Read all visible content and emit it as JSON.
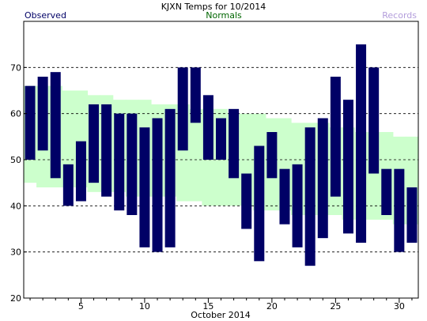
{
  "chart_data": {
    "type": "bar",
    "title": "KJXN Temps for 10/2014",
    "xlabel": "October 2014",
    "ylabel": "",
    "legend": [
      {
        "label": "Observed",
        "color": "#000066",
        "position": "top-left"
      },
      {
        "label": "Normals",
        "color": "#006600",
        "position": "top-center"
      },
      {
        "label": "Records",
        "color": "#b39ddb",
        "position": "top-right"
      }
    ],
    "ylim": [
      20,
      80
    ],
    "xlim": [
      0.5,
      31.5
    ],
    "grid": "horizontal dashed",
    "y_ticks": [
      20,
      30,
      40,
      50,
      60,
      70
    ],
    "x_ticks": [
      5,
      10,
      15,
      20,
      25,
      30
    ],
    "days": [
      1,
      2,
      3,
      4,
      5,
      6,
      7,
      8,
      9,
      10,
      11,
      12,
      13,
      14,
      15,
      16,
      17,
      18,
      19,
      20,
      21,
      22,
      23,
      24,
      25,
      26,
      27,
      28,
      29,
      30,
      31
    ],
    "series": [
      {
        "name": "Observed",
        "color": "#000066",
        "high": [
          66,
          68,
          69,
          49,
          54,
          62,
          62,
          60,
          60,
          57,
          59,
          61,
          70,
          70,
          64,
          59,
          61,
          47,
          53,
          56,
          48,
          49,
          57,
          59,
          68,
          63,
          75,
          70,
          48,
          48,
          44
        ],
        "low": [
          50,
          52,
          46,
          40,
          41,
          45,
          42,
          39,
          38,
          31,
          30,
          31,
          52,
          58,
          50,
          50,
          46,
          35,
          28,
          46,
          36,
          31,
          27,
          33,
          42,
          34,
          32,
          47,
          38,
          30,
          32
        ]
      },
      {
        "name": "Normals",
        "color": "#ccffcc",
        "high": [
          66,
          66,
          66,
          65,
          65,
          64,
          64,
          63,
          63,
          63,
          62,
          62,
          62,
          61,
          61,
          61,
          60,
          60,
          60,
          59,
          59,
          58,
          58,
          58,
          57,
          57,
          56,
          56,
          56,
          55,
          55
        ],
        "low": [
          45,
          44,
          44,
          44,
          44,
          43,
          43,
          43,
          42,
          42,
          42,
          42,
          41,
          41,
          40,
          40,
          40,
          40,
          39,
          39,
          39,
          38,
          38,
          38,
          38,
          37,
          37,
          37,
          37,
          36,
          36
        ]
      }
    ]
  }
}
